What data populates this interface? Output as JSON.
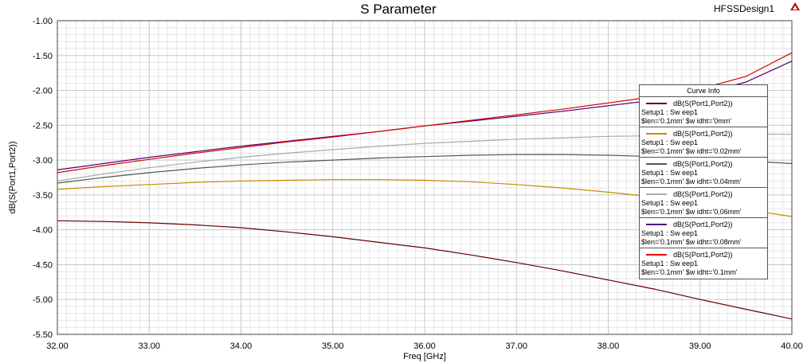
{
  "chart_data": {
    "type": "line",
    "title": "S Parameter",
    "design_name": "HFSSDesign1",
    "logo_text": "ANSOFT",
    "xlabel": "Freq [GHz]",
    "ylabel": "dB(S(Port1,Port2))",
    "xlim": [
      32.0,
      40.0
    ],
    "ylim": [
      -5.5,
      -1.0
    ],
    "x_ticks": [
      "32.00",
      "33.00",
      "34.00",
      "35.00",
      "36.00",
      "37.00",
      "38.00",
      "39.00",
      "40.00"
    ],
    "y_ticks": [
      "-1.00",
      "-1.50",
      "-2.00",
      "-2.50",
      "-3.00",
      "-3.50",
      "-4.00",
      "-4.50",
      "-5.00",
      "-5.50"
    ],
    "grid": true,
    "legend_title": "Curve Info",
    "legend_position": "right",
    "x": [
      32.0,
      32.5,
      33.0,
      33.5,
      34.0,
      34.5,
      35.0,
      35.5,
      36.0,
      36.5,
      37.0,
      37.5,
      38.0,
      38.5,
      39.0,
      39.5,
      40.0
    ],
    "series": [
      {
        "name": "dB(S(Port1,Port2))",
        "setup": "Setup1 : Sw eep1",
        "params": "$len='0.1mm' $w idht='0mm'",
        "color": "#660000",
        "values": [
          -3.87,
          -3.88,
          -3.9,
          -3.93,
          -3.97,
          -4.03,
          -4.1,
          -4.18,
          -4.26,
          -4.36,
          -4.47,
          -4.59,
          -4.72,
          -4.85,
          -5.0,
          -5.14,
          -5.28
        ]
      },
      {
        "name": "dB(S(Port1,Port2))",
        "setup": "Setup1 : Sw eep1",
        "params": "$len='0.1mm' $w idht='0.02mm'",
        "color": "#cc8800",
        "values": [
          -3.42,
          -3.38,
          -3.35,
          -3.32,
          -3.3,
          -3.29,
          -3.28,
          -3.28,
          -3.29,
          -3.31,
          -3.35,
          -3.4,
          -3.46,
          -3.53,
          -3.61,
          -3.71,
          -3.81
        ]
      },
      {
        "name": "dB(S(Port1,Port2))",
        "setup": "Setup1 : Sw eep1",
        "params": "$len='0.1mm' $w idht='0.04mm'",
        "color": "#555555",
        "values": [
          -3.33,
          -3.25,
          -3.18,
          -3.12,
          -3.07,
          -3.03,
          -3.0,
          -2.97,
          -2.95,
          -2.93,
          -2.92,
          -2.92,
          -2.93,
          -2.95,
          -2.98,
          -3.01,
          -3.05
        ]
      },
      {
        "name": "dB(S(Port1,Port2))",
        "setup": "Setup1 : Sw eep1",
        "params": "$len='0.1mm' $w idht='0.06mm'",
        "color": "#aaaaaa",
        "values": [
          -3.3,
          -3.2,
          -3.11,
          -3.03,
          -2.96,
          -2.9,
          -2.85,
          -2.8,
          -2.76,
          -2.73,
          -2.7,
          -2.68,
          -2.66,
          -2.65,
          -2.64,
          -2.63,
          -2.63
        ]
      },
      {
        "name": "dB(S(Port1,Port2))",
        "setup": "Setup1 : Sw eep1",
        "params": "$len='0.1mm' $w idht='0.08mm'",
        "color": "#550077",
        "values": [
          -3.14,
          -3.05,
          -2.96,
          -2.88,
          -2.8,
          -2.73,
          -2.66,
          -2.59,
          -2.51,
          -2.44,
          -2.37,
          -2.3,
          -2.22,
          -2.14,
          -2.06,
          -1.88,
          -1.58
        ]
      },
      {
        "name": "dB(S(Port1,Port2))",
        "setup": "Setup1 : Sw eep1",
        "params": "$len='0.1mm' $w idht='0.1mm'",
        "color": "#dd0000",
        "values": [
          -3.18,
          -3.08,
          -2.99,
          -2.9,
          -2.82,
          -2.74,
          -2.67,
          -2.59,
          -2.51,
          -2.43,
          -2.35,
          -2.27,
          -2.18,
          -2.09,
          -1.98,
          -1.8,
          -1.46
        ]
      }
    ]
  }
}
